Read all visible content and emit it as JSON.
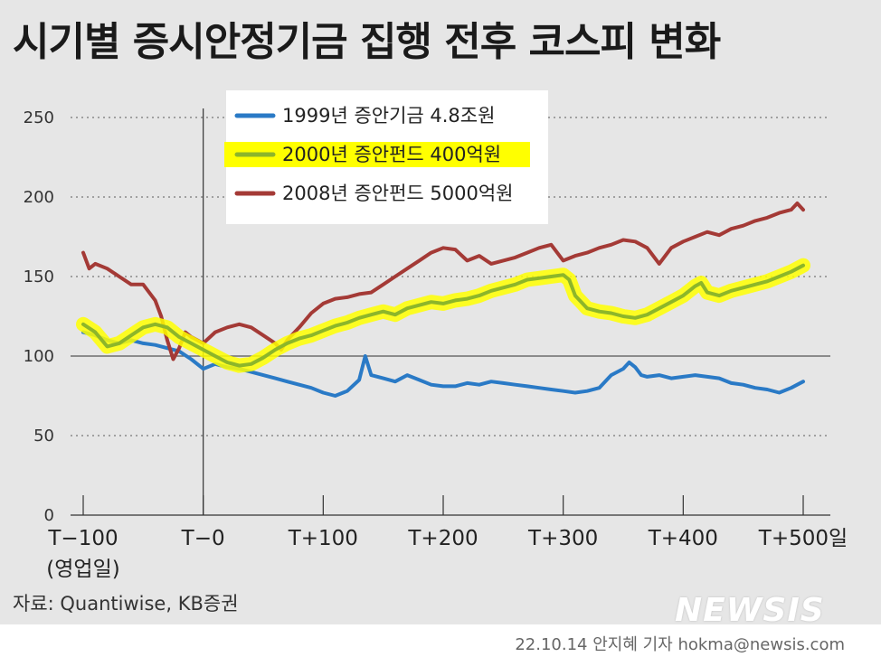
{
  "title": "시기별 증시안정기금 집행 전후 코스피 변화",
  "source": "자료: Quantiwise, KB증권",
  "credit": "22.10.14 안지혜 기자 hokma@newsis.com",
  "logo_text": "NEWSIS",
  "colors": {
    "background": "#e6e6e6",
    "series_1999": "#2a7ac6",
    "series_2000": "#8db62a",
    "series_2000_highlight": "#ffff00",
    "series_2008": "#a43a36"
  },
  "chart_data": {
    "type": "line",
    "title": "시기별 증시안정기금 집행 전후 코스피 변화",
    "xlabel": "",
    "ylabel": "",
    "xlim": [
      -100,
      500
    ],
    "ylim": [
      0,
      250
    ],
    "yticks": [
      0,
      50,
      100,
      150,
      200,
      250
    ],
    "xticks": [
      {
        "value": -100,
        "label": "T−100"
      },
      {
        "value": 0,
        "label": "T−0"
      },
      {
        "value": 100,
        "label": "T+100"
      },
      {
        "value": 200,
        "label": "T+200"
      },
      {
        "value": 300,
        "label": "T+300"
      },
      {
        "value": 400,
        "label": "T+400"
      },
      {
        "value": 500,
        "label": "T+500일"
      }
    ],
    "xtick_sublabel": "(영업일)",
    "reference_lines": {
      "x": 0,
      "y": 100
    },
    "grid": "horizontal dotted",
    "legend_position": "top-center",
    "series": [
      {
        "name": "1999년 증안기금 4.8조원",
        "highlight": false,
        "x": [
          -100,
          -90,
          -80,
          -70,
          -60,
          -50,
          -40,
          -30,
          -20,
          -10,
          0,
          10,
          20,
          30,
          40,
          50,
          60,
          70,
          80,
          90,
          100,
          110,
          120,
          130,
          135,
          140,
          150,
          160,
          170,
          180,
          190,
          200,
          210,
          220,
          230,
          240,
          250,
          260,
          270,
          280,
          290,
          300,
          310,
          320,
          330,
          340,
          350,
          355,
          360,
          365,
          370,
          380,
          390,
          400,
          410,
          420,
          430,
          440,
          450,
          460,
          470,
          480,
          490,
          500
        ],
        "y": [
          115,
          113,
          110,
          108,
          110,
          108,
          107,
          105,
          103,
          98,
          92,
          95,
          93,
          92,
          90,
          88,
          86,
          84,
          82,
          80,
          77,
          75,
          78,
          85,
          100,
          88,
          86,
          84,
          88,
          85,
          82,
          81,
          81,
          83,
          82,
          84,
          83,
          82,
          81,
          80,
          79,
          78,
          77,
          78,
          80,
          88,
          92,
          96,
          93,
          88,
          87,
          88,
          86,
          87,
          88,
          87,
          86,
          83,
          82,
          80,
          79,
          77,
          80,
          84
        ]
      },
      {
        "name": "2000년 증안펀드 400억원",
        "highlight": true,
        "x": [
          -100,
          -90,
          -80,
          -70,
          -60,
          -50,
          -40,
          -30,
          -20,
          -10,
          0,
          10,
          20,
          30,
          40,
          50,
          60,
          70,
          80,
          90,
          100,
          110,
          120,
          130,
          140,
          150,
          160,
          170,
          180,
          190,
          200,
          210,
          220,
          230,
          240,
          250,
          260,
          270,
          280,
          290,
          300,
          305,
          310,
          320,
          330,
          340,
          350,
          360,
          370,
          380,
          390,
          400,
          410,
          415,
          420,
          430,
          440,
          450,
          460,
          470,
          480,
          490,
          500
        ],
        "y": [
          120,
          115,
          106,
          108,
          113,
          118,
          120,
          118,
          112,
          108,
          104,
          100,
          96,
          94,
          95,
          99,
          104,
          108,
          111,
          113,
          116,
          119,
          121,
          124,
          126,
          128,
          126,
          130,
          132,
          134,
          133,
          135,
          136,
          138,
          141,
          143,
          145,
          148,
          149,
          150,
          151,
          148,
          138,
          130,
          128,
          127,
          125,
          124,
          126,
          130,
          134,
          138,
          144,
          146,
          140,
          138,
          141,
          143,
          145,
          147,
          150,
          153,
          157
        ]
      },
      {
        "name": "2008년 증안펀드 5000억원",
        "highlight": false,
        "x": [
          -100,
          -95,
          -90,
          -80,
          -70,
          -60,
          -50,
          -40,
          -35,
          -30,
          -25,
          -20,
          -15,
          -10,
          0,
          10,
          20,
          30,
          40,
          50,
          60,
          65,
          70,
          80,
          90,
          100,
          110,
          120,
          130,
          140,
          150,
          160,
          170,
          180,
          190,
          200,
          210,
          220,
          230,
          240,
          250,
          260,
          270,
          280,
          290,
          300,
          310,
          320,
          330,
          340,
          350,
          360,
          370,
          380,
          390,
          400,
          410,
          420,
          430,
          440,
          450,
          460,
          470,
          480,
          490,
          495,
          500
        ],
        "y": [
          165,
          155,
          158,
          155,
          150,
          145,
          145,
          135,
          125,
          110,
          98,
          105,
          115,
          112,
          108,
          115,
          118,
          120,
          118,
          113,
          108,
          104,
          110,
          118,
          127,
          133,
          136,
          137,
          139,
          140,
          145,
          150,
          155,
          160,
          165,
          168,
          167,
          160,
          163,
          158,
          160,
          162,
          165,
          168,
          170,
          160,
          163,
          165,
          168,
          170,
          173,
          172,
          168,
          158,
          168,
          172,
          175,
          178,
          176,
          180,
          182,
          185,
          187,
          190,
          192,
          196,
          192
        ]
      }
    ]
  }
}
